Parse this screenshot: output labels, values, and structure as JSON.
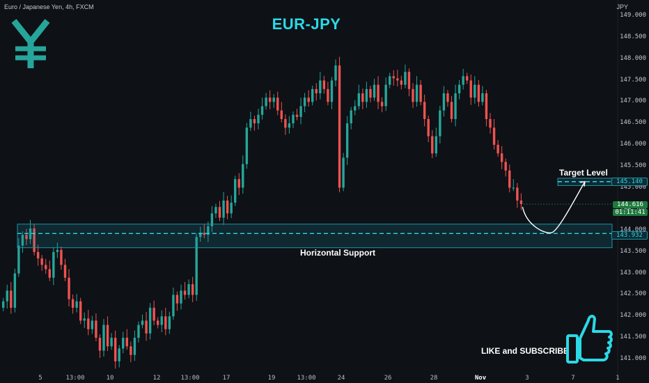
{
  "header": {
    "symbol_line": "Euro / Japanese Yen, 4h, FXCM",
    "currency": "JPY"
  },
  "title": "EUR-JPY",
  "colors": {
    "accent": "#2bd9e6",
    "bull": "#26a69a",
    "bear": "#ef5350",
    "background": "#0e1116",
    "zone": "#1d93a8"
  },
  "icons": {
    "logo": "yen-icon",
    "cta": "thumbs-up-icon"
  },
  "annotations": {
    "target_label": "Target Level",
    "support_label": "Horizontal Support",
    "cta_label": "LIKE and SUBSCRIBE"
  },
  "price_badges": {
    "target": "145.140",
    "current_price": "144.616",
    "countdown": "01:11:41",
    "support": "143.932"
  },
  "chart_data": {
    "type": "candlestick",
    "title": "EUR-JPY",
    "timeframe": "4h",
    "ylim": [
      140.9,
      149.1
    ],
    "y_ticks": [
      "149.000",
      "148.500",
      "148.000",
      "147.500",
      "147.000",
      "146.500",
      "146.000",
      "145.500",
      "145.000",
      "144.500",
      "144.000",
      "143.500",
      "143.000",
      "142.500",
      "142.000",
      "141.500",
      "141.000"
    ],
    "x_ticks": [
      "5",
      "13:00",
      "10",
      "12",
      "13:00",
      "17",
      "19",
      "13:00",
      "24",
      "26",
      "28",
      "Nov",
      "3",
      "7",
      "1"
    ],
    "support_zone": [
      143.6,
      144.15
    ],
    "support_level": 143.932,
    "target_zone": [
      145.05,
      145.22
    ],
    "target_level": 145.14,
    "projection": {
      "from": 144.55,
      "low": 143.95,
      "to": 145.14
    },
    "last_price": 144.616,
    "closes": [
      142.35,
      142.6,
      142.2,
      143.0,
      143.65,
      143.9,
      143.8,
      144.05,
      143.5,
      143.35,
      143.2,
      143.1,
      142.9,
      143.5,
      143.55,
      143.2,
      142.9,
      142.4,
      142.2,
      142.35,
      141.9,
      141.95,
      141.7,
      141.9,
      141.5,
      141.2,
      141.8,
      141.3,
      141.5,
      140.95,
      141.25,
      141.5,
      141.3,
      141.1,
      141.5,
      141.8,
      141.9,
      141.6,
      142.2,
      141.9,
      141.8,
      142.0,
      141.7,
      142.0,
      142.5,
      142.3,
      142.6,
      142.5,
      142.75,
      142.5,
      143.85,
      143.95,
      143.9,
      144.1,
      144.4,
      144.55,
      144.3,
      144.7,
      144.4,
      144.65,
      145.2,
      145.0,
      145.55,
      146.4,
      146.6,
      146.5,
      146.7,
      146.9,
      147.1,
      147.0,
      147.1,
      146.8,
      146.6,
      146.4,
      146.5,
      146.7,
      146.65,
      146.9,
      147.1,
      147.0,
      147.3,
      147.2,
      147.5,
      147.3,
      147.0,
      147.5,
      147.85,
      145.0,
      145.7,
      146.5,
      146.8,
      146.9,
      147.2,
      147.0,
      147.3,
      147.1,
      147.4,
      147.0,
      146.9,
      147.4,
      147.6,
      147.55,
      147.5,
      147.4,
      147.7,
      147.3,
      147.0,
      147.4,
      147.0,
      146.6,
      146.2,
      145.8,
      146.2,
      146.8,
      147.2,
      147.0,
      146.6,
      147.2,
      147.4,
      147.6,
      147.5,
      147.1,
      147.4,
      147.0,
      147.2,
      146.6,
      146.4,
      146.0,
      145.8,
      145.6,
      145.4,
      145.0,
      145.0,
      144.7,
      144.62
    ]
  }
}
